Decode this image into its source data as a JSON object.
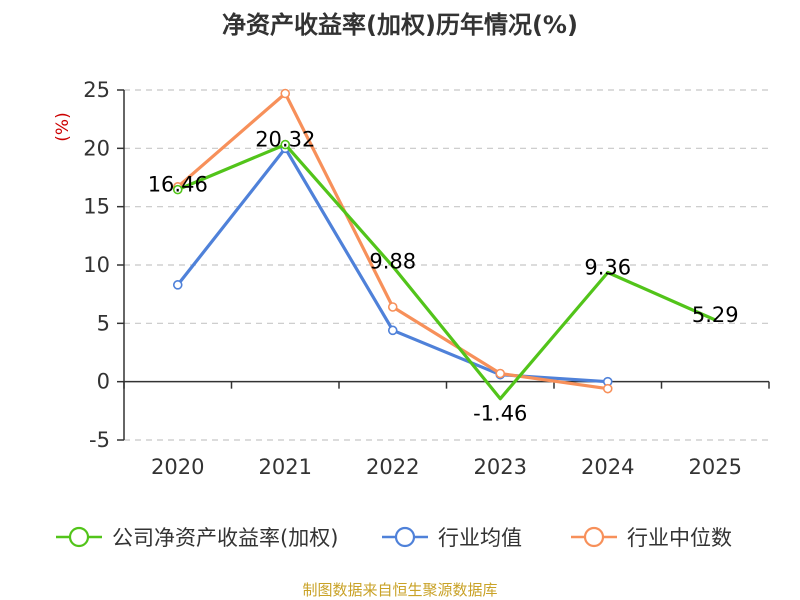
{
  "chart_data": {
    "type": "line",
    "title": "净资产收益率(加权)历年情况(%)",
    "ylabel": "(%)",
    "xlabel": "",
    "categories": [
      "2020",
      "2021",
      "2022",
      "2023",
      "2024",
      "2025"
    ],
    "yticks": [
      "25",
      "20",
      "15",
      "10",
      "5",
      "0",
      "-5"
    ],
    "ylim": [
      -5,
      25
    ],
    "grid": true,
    "legend_position": "bottom",
    "series": [
      {
        "name": "公司净资产收益率(加权)",
        "color": "#52c41a",
        "values": [
          16.46,
          20.32,
          9.88,
          -1.46,
          9.36,
          5.29
        ],
        "labels": [
          "16.46",
          "20.32",
          "9.88",
          "-1.46",
          "9.36",
          "5.29"
        ],
        "markers": [
          true,
          true,
          false,
          false,
          false,
          false
        ]
      },
      {
        "name": "行业均值",
        "color": "#4f81d9",
        "values": [
          8.3,
          20.0,
          4.4,
          0.6,
          0.0,
          null
        ],
        "markers": [
          true,
          true,
          true,
          true,
          true,
          false
        ]
      },
      {
        "name": "行业中位数",
        "color": "#f7905a",
        "values": [
          16.7,
          24.7,
          6.4,
          0.7,
          -0.6,
          null
        ],
        "markers": [
          true,
          true,
          true,
          true,
          true,
          false
        ]
      }
    ],
    "unit_color": "#cc0000",
    "source": "制图数据来自恒生聚源数据库",
    "source_color": "#c9a227"
  }
}
